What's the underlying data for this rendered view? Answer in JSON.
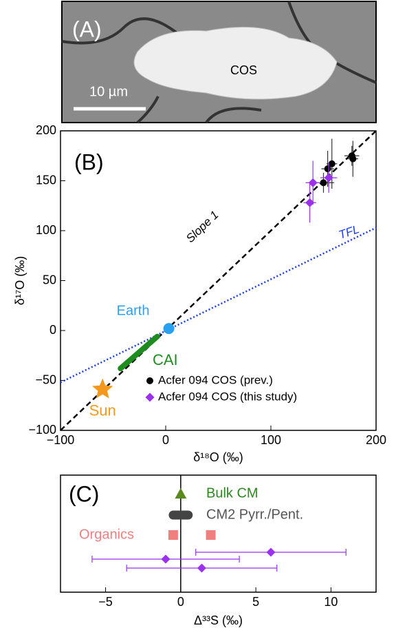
{
  "panel_a": {
    "label": "(A)",
    "object_label": "COS",
    "scale_label": "10 µm"
  },
  "chart_data": [
    {
      "type": "scatter",
      "panel_label": "(B)",
      "x_label": "δ¹⁸O (‰)",
      "y_label": "δ¹⁷O (‰)",
      "xlim": [
        -100,
        200
      ],
      "ylim": [
        -100,
        200
      ],
      "xticks": [
        {
          "value": -100,
          "label": "−100"
        },
        0,
        100,
        200
      ],
      "yticks": [
        {
          "value": -100,
          "label": "−100"
        },
        {
          "value": -50,
          "label": "−50"
        },
        0,
        50,
        100,
        150,
        200
      ],
      "lines": [
        {
          "name": "Slope 1",
          "color": "#000000",
          "style": "dashed",
          "x": [
            -100,
            200
          ],
          "y": [
            -100,
            200
          ]
        },
        {
          "name": "TFL",
          "color": "#1a3cf0",
          "style": "dotted",
          "x": [
            -100,
            200
          ],
          "y": [
            -52,
            103
          ]
        },
        {
          "name": "CAI",
          "color": "#1e8c1e",
          "style": "solid",
          "x": [
            -43,
            -8
          ],
          "y": [
            -38,
            -6
          ]
        }
      ],
      "points": [
        {
          "name": "Earth",
          "color": "#2aa0f0",
          "marker": "circle",
          "x": [
            3
          ],
          "y": [
            2
          ]
        },
        {
          "name": "Sun",
          "color": "#f39a1e",
          "marker": "star",
          "x": [
            -60
          ],
          "y": [
            -59
          ]
        }
      ],
      "series": [
        {
          "name": "Acfer 094 COS (prev.)",
          "color": "#000000",
          "marker": "circle",
          "x": [
            150,
            154,
            158,
            177,
            178
          ],
          "y": [
            148,
            162,
            167,
            175,
            172
          ],
          "x_err": [
            10,
            6,
            5,
            7,
            5
          ],
          "y_err": [
            10,
            18,
            25,
            10,
            18
          ]
        },
        {
          "name": "Acfer 094 COS (this study)",
          "color": "#9b30f0",
          "marker": "diamond",
          "x": [
            140,
            137,
            155
          ],
          "y": [
            148,
            128,
            153
          ],
          "x_err": [
            7,
            6,
            8
          ],
          "y_err": [
            22,
            20,
            15
          ]
        }
      ],
      "legend": "lower-right"
    },
    {
      "type": "strip",
      "panel_label": "(C)",
      "x_label": "Δ³³S (‰)",
      "xlim": [
        -8,
        13
      ],
      "xticks": [
        {
          "value": -5,
          "label": "−5"
        },
        0,
        5,
        10
      ],
      "series": [
        {
          "name": "Bulk CM",
          "color": "#5a8a1e",
          "marker": "triangle",
          "x": [
            0
          ]
        },
        {
          "name": "CM2 Pyrr./Pent.",
          "color": "#444444",
          "marker": "range",
          "x": [
            -0.5,
            0.5
          ]
        },
        {
          "name": "Organics",
          "color": "#f08080",
          "marker": "square",
          "x": [
            -0.5,
            2.0
          ]
        },
        {
          "color": "#9b30f0",
          "marker": "diamond",
          "x": [
            6,
            -1,
            1.4
          ],
          "x_err": [
            5,
            4.9,
            5
          ]
        }
      ]
    }
  ]
}
